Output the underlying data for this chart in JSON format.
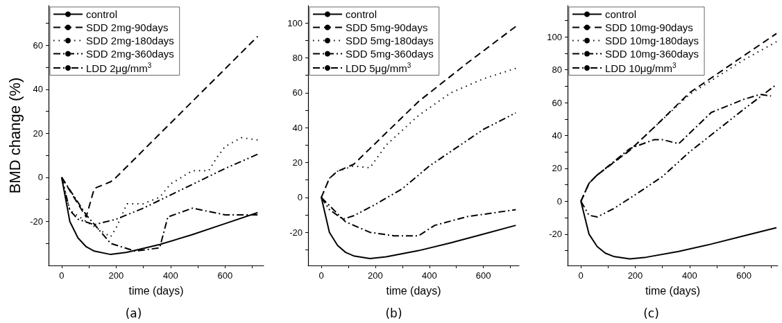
{
  "chart_data": [
    {
      "type": "line",
      "ylabel": "BMD change (%)",
      "xlabel": "time (days)",
      "annotations": [
        "(a)"
      ],
      "legend": "top left",
      "grid": false,
      "marker": "none",
      "xlim": [
        -48,
        742
      ],
      "xticks": [
        0,
        {
          "value": 100,
          "label": null
        },
        200,
        {
          "value": 300,
          "label": null
        },
        400,
        {
          "value": 500,
          "label": null
        },
        600,
        {
          "value": 700,
          "label": null
        }
      ],
      "ylim": [
        -40,
        78
      ],
      "yticks": [
        {
          "value": -30,
          "label": null
        },
        -20,
        {
          "value": -10,
          "label": null
        },
        0,
        {
          "value": 10,
          "label": null
        },
        20,
        {
          "value": 30,
          "label": null
        },
        40,
        {
          "value": 50,
          "label": null
        },
        60,
        {
          "value": 70,
          "label": null
        }
      ],
      "series": [
        {
          "name": "control",
          "color": "#000000",
          "line_style": "solid",
          "x": [
            0,
            15,
            30,
            60,
            90,
            120,
            180,
            240,
            360,
            480,
            600,
            720
          ],
          "values": [
            0,
            -10,
            -20,
            -27.5,
            -31.5,
            -33.5,
            -35,
            -34,
            -30.5,
            -26,
            -21,
            -16
          ]
        },
        {
          "name": "SDD 2mg-90days",
          "color": "#000000",
          "line_style": "dashed",
          "x": [
            0,
            90,
            120,
            180,
            200,
            720
          ],
          "values": [
            0,
            -18,
            -5,
            -2,
            0,
            64
          ]
        },
        {
          "name": "SDD 2mg-180days",
          "color": "#000000",
          "line_style": "dotted",
          "x": [
            0,
            30,
            90,
            180,
            200,
            240,
            300,
            360,
            400,
            480,
            540,
            570,
            600,
            660,
            720
          ],
          "values": [
            0,
            -15,
            -20,
            -27,
            -23,
            -12,
            -12,
            -9,
            -3,
            3,
            3,
            9,
            14,
            18,
            17
          ]
        },
        {
          "name": "SDD 2mg-360days",
          "color": "#000000",
          "line_style": "dashdot",
          "x": [
            0,
            90,
            180,
            270,
            360,
            390,
            480,
            600,
            720
          ],
          "values": [
            0,
            -17,
            -30,
            -33.5,
            -32,
            -18,
            -14,
            -17,
            -17
          ]
        },
        {
          "name": "LDD 2μg/mm$^{3}$",
          "color": "#000000",
          "line_style": "dashdotdot",
          "x": [
            0,
            30,
            60,
            120,
            200,
            300,
            400,
            500,
            600,
            720
          ],
          "values": [
            0,
            -15,
            -19,
            -21.5,
            -19,
            -14,
            -8,
            -2,
            4,
            10.5
          ]
        }
      ]
    },
    {
      "type": "line",
      "xlabel": "time (days)",
      "annotations": [
        "(b)"
      ],
      "legend": "top left",
      "grid": false,
      "marker": "none",
      "xlim": [
        -49,
        732
      ],
      "xticks": [
        0,
        {
          "value": 100,
          "label": null
        },
        200,
        {
          "value": 300,
          "label": null
        },
        400,
        {
          "value": 500,
          "label": null
        },
        600,
        {
          "value": 700,
          "label": null
        }
      ],
      "ylim": [
        -39,
        110
      ],
      "yticks": [
        {
          "value": -30,
          "label": null
        },
        -20,
        {
          "value": -10,
          "label": null
        },
        0,
        {
          "value": 10,
          "label": null
        },
        20,
        {
          "value": 30,
          "label": null
        },
        40,
        {
          "value": 50,
          "label": null
        },
        60,
        {
          "value": 70,
          "label": null
        },
        80,
        {
          "value": 90,
          "label": null
        },
        100
      ],
      "series": [
        {
          "name": "control",
          "color": "#000000",
          "line_style": "solid",
          "x": [
            0,
            15,
            30,
            60,
            90,
            120,
            180,
            240,
            360,
            480,
            600,
            720
          ],
          "values": [
            0,
            -10,
            -20,
            -27.5,
            -31.5,
            -33.5,
            -35,
            -34,
            -30.5,
            -26,
            -21,
            -16
          ]
        },
        {
          "name": "SDD 5mg-90days",
          "color": "#000000",
          "line_style": "dashed",
          "x": [
            0,
            30,
            60,
            120,
            180,
            360,
            540,
            720
          ],
          "values": [
            0,
            11,
            15,
            19,
            28,
            55,
            77,
            98
          ]
        },
        {
          "name": "SDD 5mg-180days",
          "color": "#000000",
          "line_style": "dotted",
          "x": [
            0,
            30,
            60,
            120,
            180,
            240,
            360,
            480,
            600,
            720
          ],
          "values": [
            0,
            11,
            15,
            18,
            17,
            30,
            47,
            60,
            68,
            74
          ]
        },
        {
          "name": "SDD 5mg-360days",
          "color": "#000000",
          "line_style": "dashdot",
          "x": [
            0,
            90,
            180,
            270,
            360,
            420,
            540,
            720
          ],
          "values": [
            0,
            -14,
            -20,
            -22,
            -22,
            -16,
            -11,
            -7
          ]
        },
        {
          "name": "LDD 5μg/mm$^{3}$",
          "color": "#000000",
          "line_style": "dashdotdot",
          "x": [
            0,
            30,
            80,
            120,
            200,
            300,
            400,
            500,
            600,
            720
          ],
          "values": [
            0,
            -7,
            -12.5,
            -10.5,
            -4,
            5,
            18,
            28.5,
            39,
            48.5
          ]
        }
      ]
    },
    {
      "type": "line",
      "xlabel": "time (days)",
      "annotations": [
        "(c)"
      ],
      "legend": "top left",
      "grid": false,
      "marker": "none",
      "xlim": [
        -49,
        725
      ],
      "xticks": [
        0,
        {
          "value": 100,
          "label": null
        },
        200,
        {
          "value": 300,
          "label": null
        },
        400,
        {
          "value": 500,
          "label": null
        },
        600,
        {
          "value": 700,
          "label": null
        }
      ],
      "ylim": [
        -39,
        119
      ],
      "yticks": [
        {
          "value": -30,
          "label": null
        },
        -20,
        {
          "value": -10,
          "label": null
        },
        0,
        {
          "value": 10,
          "label": null
        },
        20,
        {
          "value": 30,
          "label": null
        },
        40,
        {
          "value": 50,
          "label": null
        },
        60,
        {
          "value": 70,
          "label": null
        },
        80,
        {
          "value": 90,
          "label": null
        },
        100,
        {
          "value": 110,
          "label": null
        }
      ],
      "series": [
        {
          "name": "control",
          "color": "#000000",
          "line_style": "solid",
          "x": [
            0,
            15,
            30,
            60,
            90,
            120,
            180,
            240,
            360,
            480,
            600,
            720
          ],
          "values": [
            0,
            -10,
            -20,
            -27.5,
            -31.5,
            -33.5,
            -35,
            -34,
            -30.5,
            -26,
            -21,
            -16
          ]
        },
        {
          "name": "SDD 10mg-90days",
          "color": "#000000",
          "line_style": "dashed",
          "x": [
            0,
            30,
            60,
            180,
            270,
            400,
            720
          ],
          "values": [
            0,
            11,
            16,
            31,
            45,
            66,
            102
          ]
        },
        {
          "name": "SDD 10mg-180days",
          "color": "#000000",
          "line_style": "dotted",
          "x": [
            0,
            30,
            60,
            180,
            270,
            400,
            600,
            720
          ],
          "values": [
            0,
            11,
            16,
            31,
            45,
            65,
            86,
            97
          ]
        },
        {
          "name": "SDD 10mg-360days",
          "color": "#000000",
          "line_style": "dashdot",
          "x": [
            0,
            30,
            60,
            180,
            270,
            300,
            360,
            480,
            600,
            660,
            700
          ],
          "values": [
            0,
            11,
            16,
            32,
            37.5,
            37.5,
            35,
            54,
            62,
            65,
            64
          ]
        },
        {
          "name": "LDD 10μg/mm$^{3}$",
          "color": "#000000",
          "line_style": "dashdotdot",
          "x": [
            0,
            30,
            60,
            120,
            200,
            300,
            400,
            500,
            600,
            720
          ],
          "values": [
            0,
            -8.5,
            -9.5,
            -4.5,
            4,
            15,
            30,
            43,
            56,
            71
          ]
        }
      ]
    }
  ]
}
